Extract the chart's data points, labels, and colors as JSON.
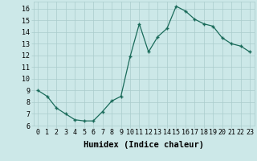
{
  "x": [
    0,
    1,
    2,
    3,
    4,
    5,
    6,
    7,
    8,
    9,
    10,
    11,
    12,
    13,
    14,
    15,
    16,
    17,
    18,
    19,
    20,
    21,
    22,
    23
  ],
  "y": [
    9.0,
    8.5,
    7.5,
    7.0,
    6.5,
    6.4,
    6.4,
    7.2,
    8.1,
    8.5,
    11.9,
    14.7,
    12.3,
    13.6,
    14.3,
    16.2,
    15.8,
    15.1,
    14.7,
    14.5,
    13.5,
    13.0,
    12.8,
    12.3
  ],
  "line_color": "#1a6b5a",
  "marker": "+",
  "marker_size": 3.5,
  "marker_lw": 1.0,
  "line_width": 0.9,
  "bg_color": "#cce8e8",
  "grid_color": "#aacccc",
  "xlabel": "Humidex (Indice chaleur)",
  "xlabel_fontsize": 7.5,
  "ylim_min": 6,
  "ylim_max": 16.6,
  "xlim_min": -0.5,
  "xlim_max": 23.5,
  "yticks": [
    6,
    7,
    8,
    9,
    10,
    11,
    12,
    13,
    14,
    15,
    16
  ],
  "xticks": [
    0,
    1,
    2,
    3,
    4,
    5,
    6,
    7,
    8,
    9,
    10,
    11,
    12,
    13,
    14,
    15,
    16,
    17,
    18,
    19,
    20,
    21,
    22,
    23
  ],
  "tick_fontsize": 6.0
}
